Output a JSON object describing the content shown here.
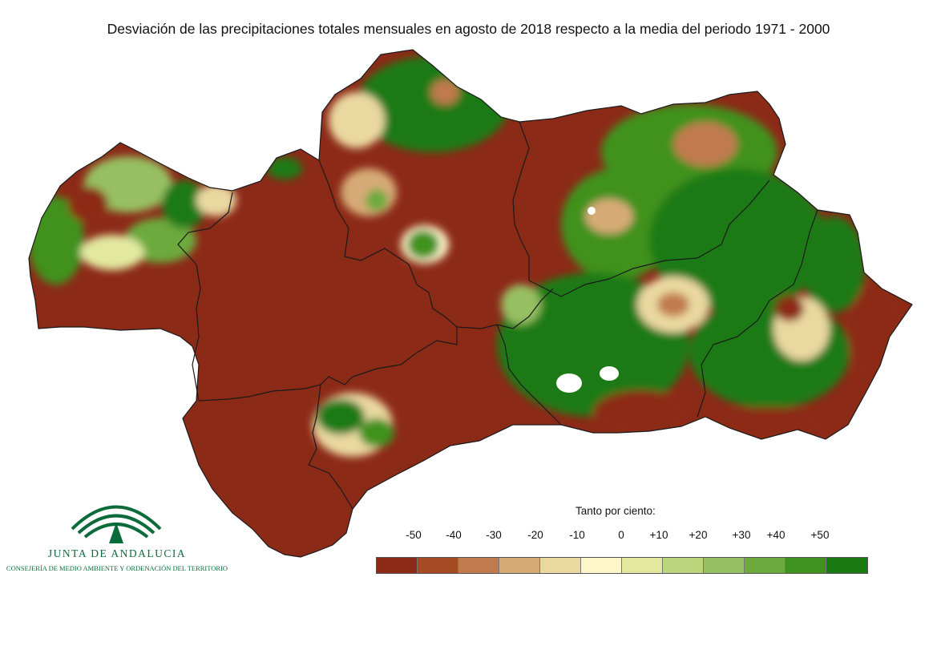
{
  "title": "Desviación de las precipitaciones totales mensuales en agosto de 2018 respecto a la media del periodo 1971 - 2000",
  "legend": {
    "title": "Tanto por ciento:",
    "ticks": [
      "-50",
      "-40",
      "-30",
      "-20",
      "-10",
      "0",
      "+10",
      "+20",
      "+30",
      "+40",
      "+50"
    ],
    "colors": [
      "#8c2a18",
      "#a44a24",
      "#c07a4e",
      "#d6aa76",
      "#ead8a0",
      "#fdf6c8",
      "#e2e8a0",
      "#bcd47c",
      "#96c062",
      "#6caa3e",
      "#40921e",
      "#1a7a12"
    ]
  },
  "map_colors": {
    "dry": "#8c2a18",
    "wet": "#1a7a12",
    "border": "#1a1a1a"
  },
  "logo": {
    "name": "JUNTA DE ANDALUCIA",
    "subtitle": "CONSEJERÍA DE MEDIO AMBIENTE Y ORDENACIÓN DEL TERRITORIO",
    "color": "#0b6b3a"
  }
}
